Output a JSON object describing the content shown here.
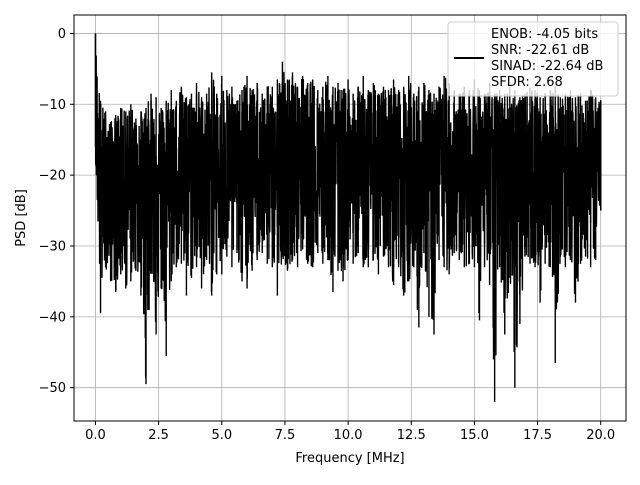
{
  "chart_data": {
    "type": "line",
    "xlabel": "Frequency [MHz]",
    "ylabel": "PSD [dB]",
    "xlim": [
      -0.85,
      21.0
    ],
    "ylim": [
      -54.7,
      2.6
    ],
    "xticks": [
      0.0,
      2.5,
      5.0,
      7.5,
      10.0,
      12.5,
      15.0,
      17.5,
      20.0
    ],
    "xtick_labels": [
      "0.0",
      "2.5",
      "5.0",
      "7.5",
      "10.0",
      "12.5",
      "15.0",
      "17.5",
      "20.0"
    ],
    "yticks": [
      0,
      -10,
      -20,
      -30,
      -40,
      -50
    ],
    "ytick_labels": [
      "0",
      "−10",
      "−20",
      "−30",
      "−40",
      "−50"
    ],
    "grid": true,
    "legend_position": "top-right",
    "legend_lines": [
      "ENOB: -4.05 bits",
      "SNR: -22.61 dB",
      "SINAD: -22.64 dB",
      "SFDR: 2.68"
    ],
    "series_color": "#000000",
    "series": [
      {
        "x": [
          0.0,
          0.2,
          0.4,
          0.6,
          0.8,
          1.0,
          1.2,
          1.4,
          1.6,
          1.8,
          2.0,
          2.2,
          2.4,
          2.6,
          2.8,
          3.0,
          3.2,
          3.4,
          3.6,
          3.8,
          4.0,
          4.2,
          4.4,
          4.6,
          4.8,
          5.0,
          5.2,
          5.4,
          5.6,
          5.8,
          6.0,
          6.2,
          6.4,
          6.6,
          6.8,
          7.0,
          7.2,
          7.4,
          7.6,
          7.8,
          8.0,
          8.2,
          8.4,
          8.6,
          8.8,
          9.0,
          9.2,
          9.4,
          9.6,
          9.8,
          10.0,
          10.2,
          10.4,
          10.6,
          10.8,
          11.0,
          11.2,
          11.4,
          11.6,
          11.8,
          12.0,
          12.2,
          12.4,
          12.6,
          12.8,
          13.0,
          13.2,
          13.4,
          13.6,
          13.8,
          14.0,
          14.2,
          14.4,
          14.6,
          14.8,
          15.0,
          15.2,
          15.4,
          15.6,
          15.8,
          16.0,
          16.2,
          16.4,
          16.6,
          16.8,
          17.0,
          17.2,
          17.4,
          17.6,
          17.8,
          18.0,
          18.2,
          18.4,
          18.6,
          18.8,
          19.0,
          19.2,
          19.4,
          19.6,
          19.8,
          20.0
        ],
        "y_max": [
          0.0,
          -9.5,
          -11.0,
          -12.5,
          -11.5,
          -10.5,
          -11.0,
          -10.0,
          -12.0,
          -11.0,
          -10.5,
          -8.5,
          -9.0,
          -10.5,
          -9.5,
          -8.0,
          -9.5,
          -7.5,
          -9.0,
          -8.5,
          -7.0,
          -9.0,
          -8.5,
          -5.5,
          -8.5,
          -6.0,
          -8.0,
          -7.5,
          -9.5,
          -8.0,
          -6.0,
          -8.0,
          -7.0,
          -8.5,
          -7.5,
          -7.5,
          -6.5,
          -4.0,
          -6.5,
          -5.5,
          -7.5,
          -6.0,
          -7.0,
          -6.5,
          -8.0,
          -7.5,
          -6.0,
          -7.5,
          -7.0,
          -8.0,
          -6.5,
          -8.5,
          -7.5,
          -6.0,
          -8.0,
          -7.0,
          -8.5,
          -7.5,
          -8.0,
          -6.5,
          -8.0,
          -7.5,
          -6.0,
          -8.5,
          -7.5,
          -7.0,
          -8.0,
          -8.5,
          -7.5,
          -6.0,
          -7.0,
          -8.0,
          -8.5,
          -7.5,
          -8.0,
          -6.5,
          -8.0,
          -8.5,
          -7.0,
          -8.5,
          -8.0,
          -8.5,
          -7.5,
          -8.0,
          -9.0,
          -8.5,
          -7.5,
          -8.0,
          -9.0,
          -8.5,
          -8.0,
          -7.5,
          -9.0,
          -8.5,
          -8.0,
          -9.0,
          -8.5,
          -9.5,
          -8.0,
          -9.0,
          -9.5
        ],
        "y_min": [
          -16.0,
          -39.5,
          -33.0,
          -35.0,
          -36.5,
          -34.0,
          -36.0,
          -35.0,
          -33.5,
          -37.0,
          -49.5,
          -33.5,
          -42.5,
          -36.0,
          -45.5,
          -35.0,
          -33.0,
          -32.5,
          -37.0,
          -34.5,
          -33.0,
          -36.0,
          -32.0,
          -37.0,
          -34.0,
          -34.0,
          -31.5,
          -33.0,
          -31.0,
          -35.0,
          -36.0,
          -33.5,
          -32.0,
          -31.0,
          -32.5,
          -33.0,
          -37.0,
          -31.5,
          -33.5,
          -32.0,
          -33.0,
          -30.5,
          -32.5,
          -33.0,
          -31.0,
          -32.5,
          -32.0,
          -36.5,
          -33.5,
          -35.0,
          -32.0,
          -32.5,
          -31.0,
          -33.0,
          -33.0,
          -32.0,
          -34.0,
          -31.5,
          -33.0,
          -35.5,
          -33.0,
          -37.0,
          -35.0,
          -33.0,
          -41.5,
          -31.0,
          -40.0,
          -42.5,
          -32.0,
          -33.0,
          -34.0,
          -31.0,
          -32.0,
          -33.0,
          -32.5,
          -33.0,
          -40.5,
          -33.0,
          -35.5,
          -52.0,
          -33.0,
          -42.5,
          -34.5,
          -50.0,
          -41.0,
          -31.5,
          -32.5,
          -33.0,
          -38.0,
          -32.5,
          -33.0,
          -46.5,
          -31.5,
          -33.0,
          -32.0,
          -38.0,
          -32.5,
          -31.5,
          -33.0,
          -32.0,
          -25.0
        ]
      }
    ]
  }
}
